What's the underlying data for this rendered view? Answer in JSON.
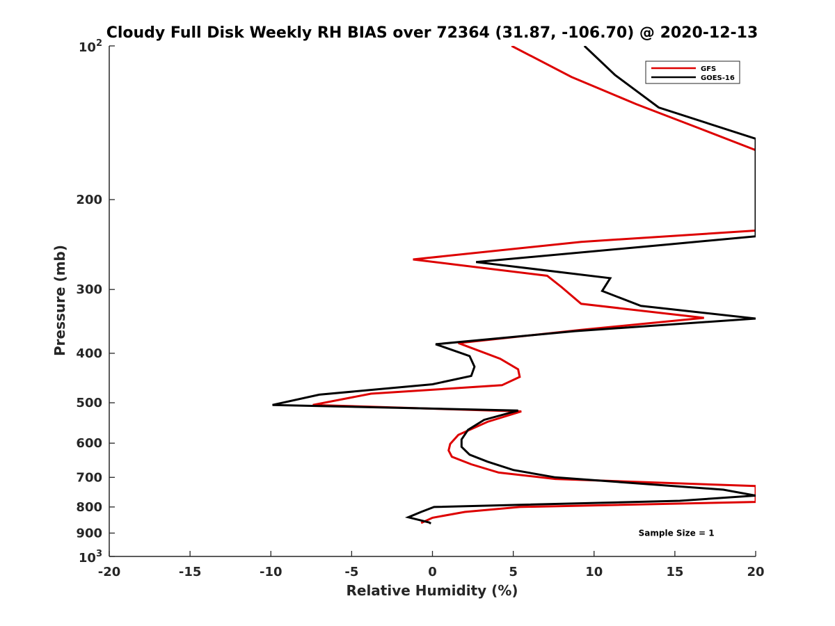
{
  "chart_data": {
    "type": "line",
    "title": "Cloudy Full Disk Weekly RH BIAS over 72364 (31.87, -106.70) @ 2020-12-13",
    "xlabel": "Relative Humidity (%)",
    "ylabel": "Pressure (mb)",
    "xlim": [
      -20,
      20
    ],
    "ylim": [
      100,
      1000
    ],
    "y_scale": "log",
    "y_reversed": true,
    "x_ticks": [
      "-20",
      "-15",
      "-10",
      "-5",
      "0",
      "5",
      "10",
      "15",
      "20"
    ],
    "y_ticks": [
      {
        "value": 100,
        "base": "10",
        "exp": "2"
      },
      {
        "value": 200,
        "label": "200"
      },
      {
        "value": 300,
        "label": "300"
      },
      {
        "value": 400,
        "label": "400"
      },
      {
        "value": 500,
        "label": "500"
      },
      {
        "value": 600,
        "label": "600"
      },
      {
        "value": 700,
        "label": "700"
      },
      {
        "value": 800,
        "label": "800"
      },
      {
        "value": 900,
        "label": "900"
      },
      {
        "value": 1000,
        "base": "10",
        "exp": "3"
      }
    ],
    "grid": false,
    "legend_position": "top-right",
    "series": [
      {
        "name": "GFS",
        "color": "#dd0000",
        "points": [
          [
            4.9,
            100
          ],
          [
            8.6,
            115
          ],
          [
            12.6,
            130
          ],
          [
            16.5,
            145
          ],
          [
            20,
            160
          ],
          [
            20,
            230
          ],
          [
            9.2,
            242
          ],
          [
            -1.2,
            262
          ],
          [
            7.1,
            282
          ],
          [
            8,
            297
          ],
          [
            9.2,
            320
          ],
          [
            16.8,
            341
          ],
          [
            9.2,
            360
          ],
          [
            1.6,
            382
          ],
          [
            4.2,
            410
          ],
          [
            5.3,
            430
          ],
          [
            5.4,
            445
          ],
          [
            4.3,
            462
          ],
          [
            -3.8,
            480
          ],
          [
            -7.4,
            505
          ],
          [
            5.5,
            520
          ],
          [
            3.4,
            545
          ],
          [
            1.6,
            578
          ],
          [
            1.1,
            602
          ],
          [
            1.0,
            620
          ],
          [
            1.2,
            638
          ],
          [
            2.4,
            660
          ],
          [
            4.1,
            685
          ],
          [
            7.6,
            705
          ],
          [
            20,
            728
          ],
          [
            20,
            782
          ],
          [
            5.4,
            800
          ],
          [
            2,
            818
          ],
          [
            0,
            840
          ],
          [
            -0.7,
            860
          ]
        ]
      },
      {
        "name": "GOES-16",
        "color": "#000000",
        "points": [
          [
            9.4,
            100
          ],
          [
            11.3,
            114
          ],
          [
            14,
            132
          ],
          [
            20,
            152
          ],
          [
            20,
            236
          ],
          [
            14.5,
            245
          ],
          [
            2.7,
            265
          ],
          [
            11,
            285
          ],
          [
            10.5,
            302
          ],
          [
            12.9,
            323
          ],
          [
            20,
            342
          ],
          [
            8.8,
            362
          ],
          [
            0.2,
            384
          ],
          [
            2.3,
            405
          ],
          [
            2.6,
            425
          ],
          [
            2.4,
            443
          ],
          [
            0,
            460
          ],
          [
            -7,
            482
          ],
          [
            -9.9,
            505
          ],
          [
            5.3,
            518
          ],
          [
            3.2,
            540
          ],
          [
            2.2,
            565
          ],
          [
            1.8,
            590
          ],
          [
            1.8,
            610
          ],
          [
            2.3,
            632
          ],
          [
            3.4,
            652
          ],
          [
            5,
            677
          ],
          [
            7.6,
            700
          ],
          [
            18,
            740
          ],
          [
            20,
            760
          ],
          [
            15.3,
            778
          ],
          [
            0.1,
            800
          ],
          [
            -0.7,
            818
          ],
          [
            -1.5,
            838
          ],
          [
            -0.2,
            858
          ],
          [
            -0.1,
            862
          ]
        ]
      }
    ],
    "annotations": [
      {
        "text": "Sample Size = 1",
        "x": 14,
        "y": 900
      }
    ]
  }
}
